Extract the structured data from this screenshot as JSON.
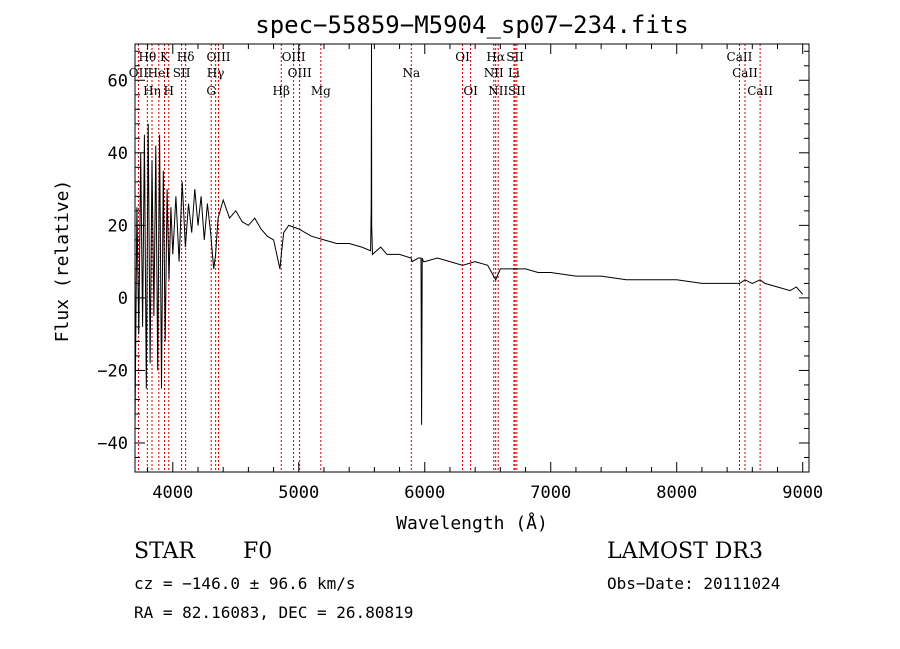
{
  "chart_data": {
    "type": "line",
    "title": "spec−55859−M5904_sp07−234.fits",
    "xlabel": "Wavelength (Å)",
    "ylabel": "Flux (relative)",
    "xlim": [
      3700,
      9050
    ],
    "ylim": [
      -48,
      70
    ],
    "xticks": [
      4000,
      5000,
      6000,
      7000,
      8000,
      9000
    ],
    "yticks": [
      -40,
      -20,
      0,
      20,
      40,
      60
    ],
    "ytick_labels": [
      "−40",
      "−20",
      "0",
      "20",
      "40",
      "60"
    ],
    "series": [
      {
        "name": "spectrum",
        "x": [
          3700,
          3715,
          3730,
          3745,
          3760,
          3775,
          3790,
          3805,
          3820,
          3835,
          3850,
          3865,
          3880,
          3895,
          3910,
          3925,
          3940,
          3955,
          3970,
          3985,
          4000,
          4025,
          4050,
          4075,
          4100,
          4125,
          4150,
          4175,
          4200,
          4225,
          4250,
          4275,
          4300,
          4325,
          4340,
          4360,
          4400,
          4450,
          4500,
          4550,
          4600,
          4650,
          4700,
          4750,
          4800,
          4850,
          4861,
          4880,
          4920,
          5000,
          5100,
          5200,
          5300,
          5400,
          5500,
          5570,
          5575,
          5577,
          5579,
          5585,
          5650,
          5700,
          5800,
          5890,
          5900,
          5950,
          5970,
          5975,
          5980,
          5990,
          6000,
          6100,
          6200,
          6300,
          6400,
          6500,
          6563,
          6600,
          6700,
          6800,
          6900,
          7000,
          7200,
          7400,
          7600,
          7800,
          8000,
          8200,
          8400,
          8500,
          8542,
          8600,
          8662,
          8700,
          8800,
          8900,
          8950,
          9000
        ],
        "values": [
          -35,
          25,
          -10,
          40,
          -8,
          45,
          -25,
          48,
          -18,
          38,
          -5,
          42,
          -20,
          45,
          -25,
          35,
          -12,
          30,
          5,
          25,
          12,
          28,
          10,
          32,
          14,
          26,
          18,
          30,
          20,
          28,
          16,
          26,
          18,
          8,
          12,
          22,
          27,
          22,
          24,
          21,
          20,
          22,
          19,
          17,
          16,
          8,
          12,
          18,
          20,
          19,
          17,
          16,
          15,
          15,
          14,
          13,
          25,
          70,
          20,
          12,
          14,
          12,
          12,
          11,
          10,
          11,
          11,
          -35,
          11,
          10,
          10,
          11,
          10,
          9,
          10,
          9,
          5,
          8,
          8,
          8,
          7,
          7,
          6,
          6,
          5,
          5,
          5,
          4,
          4,
          4,
          5,
          4,
          5,
          4,
          3,
          2,
          3,
          1
        ]
      }
    ],
    "spectral_lines": [
      {
        "label": "Hθ",
        "x": 3798,
        "row": 1
      },
      {
        "label": "K",
        "x": 3934,
        "row": 1
      },
      {
        "label": "Hδ",
        "x": 4102,
        "row": 1
      },
      {
        "label": "OIII",
        "x": 4363,
        "row": 1
      },
      {
        "label": "OIII",
        "x": 4959,
        "row": 1
      },
      {
        "label": "OI",
        "x": 6300,
        "row": 1
      },
      {
        "label": "Hα",
        "x": 6563,
        "row": 1
      },
      {
        "label": "SII",
        "x": 6717,
        "row": 1
      },
      {
        "label": "CaII",
        "x": 8498,
        "row": 1
      },
      {
        "label": "OII",
        "x": 3727,
        "row": 2
      },
      {
        "label": "HeI",
        "x": 3889,
        "row": 2
      },
      {
        "label": "SII",
        "x": 4070,
        "row": 2
      },
      {
        "label": "Hγ",
        "x": 4340,
        "row": 2
      },
      {
        "label": "OIII",
        "x": 5007,
        "row": 2
      },
      {
        "label": "Na",
        "x": 5893,
        "row": 2
      },
      {
        "label": "NII",
        "x": 6548,
        "row": 2
      },
      {
        "label": "Li",
        "x": 6708,
        "row": 2
      },
      {
        "label": "CaII",
        "x": 8542,
        "row": 2
      },
      {
        "label": "Hη",
        "x": 3835,
        "row": 3
      },
      {
        "label": "H",
        "x": 3968,
        "row": 3
      },
      {
        "label": "G",
        "x": 4305,
        "row": 3
      },
      {
        "label": "Hβ",
        "x": 4861,
        "row": 3
      },
      {
        "label": "Mg",
        "x": 5175,
        "row": 3
      },
      {
        "label": "OI",
        "x": 6364,
        "row": 3
      },
      {
        "label": "NII",
        "x": 6583,
        "row": 3
      },
      {
        "label": "SII",
        "x": 6731,
        "row": 3
      },
      {
        "label": "CaII",
        "x": 8662,
        "row": 3
      }
    ]
  },
  "info": {
    "object_class": "STAR",
    "subclass": "F0",
    "survey": "LAMOST DR3",
    "redshift": "cz = −146.0 ± 96.6 km/s",
    "obs_date": "Obs−Date: 20111024",
    "coords": "RA =  82.16083, DEC =  26.80819"
  },
  "colors": {
    "line": "#000000",
    "marker": "#cc0000",
    "axes": "#000000"
  }
}
